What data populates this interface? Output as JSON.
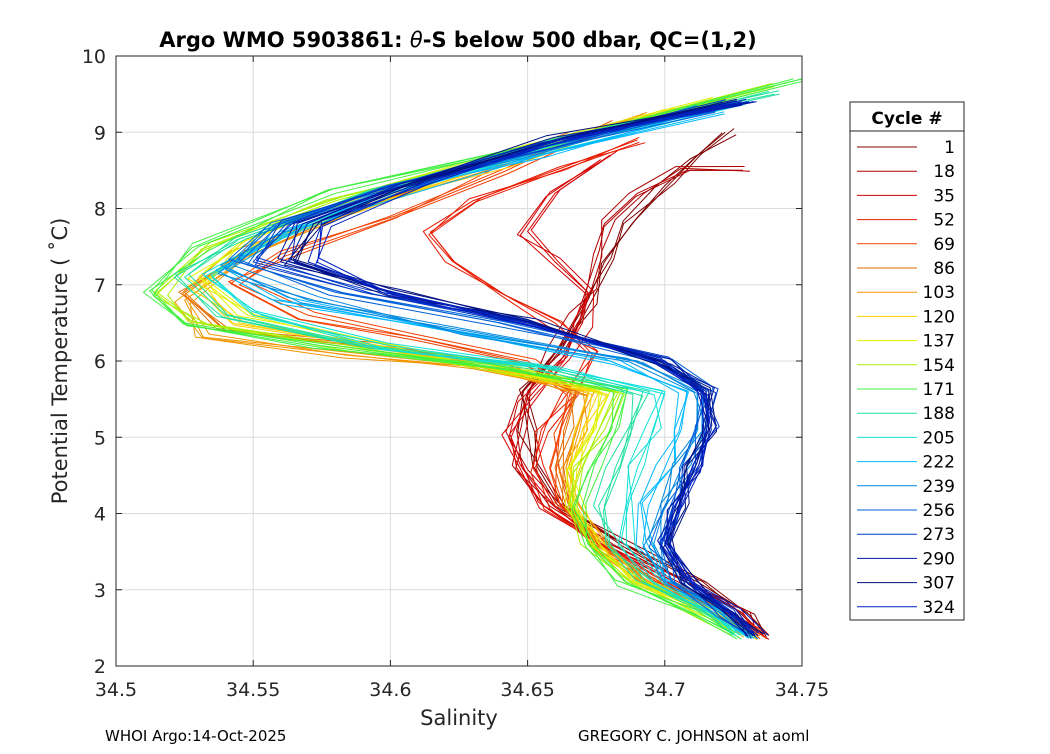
{
  "chart_data": {
    "type": "line",
    "title_prefix": "Argo WMO 5903861: ",
    "title_theta": "θ",
    "title_suffix": "-S below 500 dbar,  QC=(1,2)",
    "xlabel": "Salinity",
    "ylabel": "Potential Temperature ( ˚C)",
    "xlim": [
      34.5,
      34.75
    ],
    "ylim": [
      2,
      10
    ],
    "xticks": [
      34.5,
      34.55,
      34.6,
      34.65,
      34.7,
      34.75
    ],
    "xtick_labels": [
      "34.5",
      "34.55",
      "34.6",
      "34.65",
      "34.7",
      "34.75"
    ],
    "yticks": [
      2,
      3,
      4,
      5,
      6,
      7,
      8,
      9,
      10
    ],
    "ytick_labels": [
      "2",
      "3",
      "4",
      "5",
      "6",
      "7",
      "8",
      "9",
      "10"
    ],
    "grid": true,
    "legend": {
      "title": "Cycle #",
      "placement": "outside-right",
      "entries": [
        {
          "label": "1",
          "color": "#800000"
        },
        {
          "label": "18",
          "color": "#b00000"
        },
        {
          "label": "35",
          "color": "#d40000"
        },
        {
          "label": "52",
          "color": "#e81a00"
        },
        {
          "label": "69",
          "color": "#f24000"
        },
        {
          "label": "86",
          "color": "#e66b00"
        },
        {
          "label": "103",
          "color": "#f29500"
        },
        {
          "label": "120",
          "color": "#ffd000"
        },
        {
          "label": "137",
          "color": "#e0f000"
        },
        {
          "label": "154",
          "color": "#a8f000"
        },
        {
          "label": "171",
          "color": "#40f040"
        },
        {
          "label": "188",
          "color": "#20e0a0"
        },
        {
          "label": "205",
          "color": "#10e0d8"
        },
        {
          "label": "222",
          "color": "#00b8ff"
        },
        {
          "label": "239",
          "color": "#0088e0"
        },
        {
          "label": "256",
          "color": "#0060d8"
        },
        {
          "label": "273",
          "color": "#0038c8"
        },
        {
          "label": "290",
          "color": "#0018a0"
        },
        {
          "label": "307",
          "color": "#001080"
        },
        {
          "label": "324",
          "color": "#0020c0"
        }
      ]
    },
    "series": [
      {
        "name": "1",
        "color": "#800000",
        "s": [
          34.738,
          34.73,
          34.712,
          34.685,
          34.66,
          34.652,
          34.65,
          34.648,
          34.662,
          34.672,
          34.678,
          34.688,
          34.7,
          34.712,
          34.722
        ],
        "t": [
          2.4,
          2.7,
          3.1,
          3.6,
          4.1,
          4.6,
          5.1,
          5.6,
          6.2,
          6.8,
          7.3,
          7.8,
          8.3,
          8.7,
          9.0
        ]
      },
      {
        "name": "18",
        "color": "#b00000",
        "s": [
          34.736,
          34.728,
          34.708,
          34.68,
          34.658,
          34.648,
          34.646,
          34.65,
          34.66,
          34.668,
          34.672,
          34.674,
          34.678,
          34.69,
          34.708,
          34.728
        ],
        "t": [
          2.4,
          2.7,
          3.1,
          3.6,
          4.1,
          4.6,
          5.1,
          5.6,
          6.1,
          6.6,
          7.0,
          7.4,
          7.8,
          8.2,
          8.5,
          8.5
        ]
      },
      {
        "name": "35",
        "color": "#d40000",
        "s": [
          34.734,
          34.725,
          34.705,
          34.678,
          34.656,
          34.646,
          34.644,
          34.65,
          34.662,
          34.67,
          34.672,
          34.66,
          34.65,
          34.66,
          34.68
        ],
        "t": [
          2.4,
          2.7,
          3.1,
          3.6,
          4.1,
          4.6,
          5.0,
          5.5,
          6.0,
          6.5,
          6.9,
          7.3,
          7.7,
          8.2,
          8.7
        ]
      },
      {
        "name": "52",
        "color": "#e81a00",
        "s": [
          34.734,
          34.724,
          34.7,
          34.676,
          34.66,
          34.652,
          34.655,
          34.665,
          34.672,
          34.66,
          34.64,
          34.62,
          34.612,
          34.63,
          34.66,
          34.69
        ],
        "t": [
          2.4,
          2.7,
          3.1,
          3.6,
          4.1,
          4.6,
          5.1,
          5.6,
          6.1,
          6.5,
          6.9,
          7.3,
          7.7,
          8.1,
          8.5,
          8.9
        ]
      },
      {
        "name": "69",
        "color": "#f24000",
        "s": [
          34.733,
          34.722,
          34.698,
          34.676,
          34.662,
          34.658,
          34.662,
          34.668,
          34.65,
          34.61,
          34.57,
          34.545,
          34.56,
          34.6,
          34.64,
          34.68
        ],
        "t": [
          2.4,
          2.7,
          3.1,
          3.6,
          4.1,
          4.6,
          5.1,
          5.6,
          6.0,
          6.3,
          6.6,
          7.0,
          7.4,
          7.9,
          8.5,
          9.1
        ]
      },
      {
        "name": "86",
        "color": "#e66b00",
        "s": [
          34.732,
          34.72,
          34.696,
          34.676,
          34.664,
          34.66,
          34.664,
          34.668,
          34.64,
          34.59,
          34.54,
          34.525,
          34.545,
          34.58,
          34.62,
          34.665
        ],
        "t": [
          2.4,
          2.7,
          3.1,
          3.6,
          4.1,
          4.6,
          5.1,
          5.6,
          6.0,
          6.2,
          6.4,
          6.9,
          7.4,
          7.9,
          8.4,
          9.0
        ]
      },
      {
        "name": "103",
        "color": "#f29500",
        "s": [
          34.732,
          34.718,
          34.694,
          34.676,
          34.666,
          34.664,
          34.668,
          34.672,
          34.63,
          34.58,
          34.532,
          34.525,
          34.55,
          34.59,
          34.64,
          34.69
        ],
        "t": [
          2.4,
          2.7,
          3.1,
          3.6,
          4.1,
          4.6,
          5.1,
          5.6,
          5.9,
          6.1,
          6.3,
          6.8,
          7.4,
          8.0,
          8.6,
          9.2
        ]
      },
      {
        "name": "120",
        "color": "#ffd000",
        "s": [
          34.731,
          34.716,
          34.692,
          34.675,
          34.667,
          34.666,
          34.67,
          34.676,
          34.64,
          34.59,
          34.545,
          34.53,
          34.55,
          34.59,
          34.64,
          34.7
        ],
        "t": [
          2.4,
          2.7,
          3.1,
          3.6,
          4.1,
          4.6,
          5.1,
          5.6,
          5.9,
          6.2,
          6.5,
          7.0,
          7.5,
          8.0,
          8.6,
          9.3
        ]
      },
      {
        "name": "137",
        "color": "#e0f000",
        "s": [
          34.73,
          34.714,
          34.69,
          34.674,
          34.667,
          34.668,
          34.674,
          34.68,
          34.645,
          34.595,
          34.548,
          34.53,
          34.548,
          34.59,
          34.65,
          34.72
        ],
        "t": [
          2.4,
          2.7,
          3.1,
          3.6,
          4.1,
          4.6,
          5.1,
          5.6,
          5.9,
          6.2,
          6.6,
          7.1,
          7.6,
          8.2,
          8.8,
          9.4
        ]
      },
      {
        "name": "154",
        "color": "#a8f000",
        "s": [
          34.728,
          34.712,
          34.688,
          34.672,
          34.668,
          34.67,
          34.676,
          34.682,
          34.64,
          34.58,
          34.53,
          34.515,
          34.535,
          34.58,
          34.65,
          34.74
        ],
        "t": [
          2.4,
          2.7,
          3.1,
          3.6,
          4.1,
          4.6,
          5.1,
          5.6,
          5.9,
          6.2,
          6.5,
          6.9,
          7.5,
          8.1,
          8.8,
          9.6
        ]
      },
      {
        "name": "171",
        "color": "#40f040",
        "s": [
          34.726,
          34.71,
          34.686,
          34.672,
          34.67,
          34.674,
          34.68,
          34.685,
          34.64,
          34.575,
          34.525,
          34.51,
          34.53,
          34.58,
          34.66,
          34.75
        ],
        "t": [
          2.4,
          2.7,
          3.1,
          3.6,
          4.1,
          4.6,
          5.1,
          5.6,
          5.9,
          6.2,
          6.5,
          6.9,
          7.5,
          8.2,
          8.9,
          9.7
        ]
      },
      {
        "name": "188",
        "color": "#20e0a0",
        "s": [
          34.728,
          34.714,
          34.692,
          34.68,
          34.678,
          34.682,
          34.688,
          34.692,
          34.65,
          34.59,
          34.54,
          34.525,
          34.545,
          34.59,
          34.66,
          34.74
        ],
        "t": [
          2.4,
          2.7,
          3.1,
          3.6,
          4.1,
          4.6,
          5.1,
          5.6,
          5.9,
          6.2,
          6.6,
          7.1,
          7.6,
          8.2,
          8.9,
          9.5
        ]
      },
      {
        "name": "205",
        "color": "#10e0d8",
        "s": [
          34.729,
          34.716,
          34.696,
          34.686,
          34.686,
          34.69,
          34.696,
          34.7,
          34.66,
          34.6,
          34.55,
          34.535,
          34.555,
          34.6,
          34.66,
          34.73
        ],
        "t": [
          2.4,
          2.7,
          3.1,
          3.6,
          4.1,
          4.6,
          5.1,
          5.6,
          5.9,
          6.2,
          6.6,
          7.1,
          7.6,
          8.2,
          8.8,
          9.4
        ]
      },
      {
        "name": "222",
        "color": "#00b8ff",
        "s": [
          34.73,
          34.718,
          34.7,
          34.692,
          34.694,
          34.7,
          34.706,
          34.708,
          34.68,
          34.62,
          34.56,
          34.54,
          34.56,
          34.6,
          34.655,
          34.72
        ],
        "t": [
          2.4,
          2.7,
          3.1,
          3.6,
          4.1,
          4.6,
          5.1,
          5.6,
          6.0,
          6.4,
          6.8,
          7.2,
          7.7,
          8.2,
          8.7,
          9.3
        ]
      },
      {
        "name": "239",
        "color": "#0088e0",
        "s": [
          34.731,
          34.72,
          34.703,
          34.696,
          34.7,
          34.706,
          34.712,
          34.712,
          34.69,
          34.63,
          34.57,
          34.54,
          34.555,
          34.595,
          34.65,
          34.715
        ],
        "t": [
          2.4,
          2.7,
          3.1,
          3.6,
          4.1,
          4.6,
          5.1,
          5.6,
          6.0,
          6.4,
          6.8,
          7.2,
          7.7,
          8.2,
          8.7,
          9.3
        ]
      },
      {
        "name": "256",
        "color": "#0060d8",
        "s": [
          34.732,
          34.722,
          34.706,
          34.698,
          34.702,
          34.708,
          34.714,
          34.714,
          34.7,
          34.64,
          34.58,
          34.545,
          34.56,
          34.6,
          34.655,
          34.72
        ],
        "t": [
          2.4,
          2.7,
          3.1,
          3.6,
          4.1,
          4.6,
          5.1,
          5.6,
          6.0,
          6.5,
          6.9,
          7.3,
          7.8,
          8.3,
          8.8,
          9.3
        ]
      },
      {
        "name": "273",
        "color": "#0038c8",
        "s": [
          34.732,
          34.722,
          34.708,
          34.7,
          34.704,
          34.71,
          34.716,
          34.716,
          34.7,
          34.65,
          34.59,
          34.55,
          34.562,
          34.6,
          34.655,
          34.725
        ],
        "t": [
          2.4,
          2.7,
          3.1,
          3.6,
          4.1,
          4.6,
          5.1,
          5.6,
          6.0,
          6.5,
          6.9,
          7.3,
          7.8,
          8.3,
          8.8,
          9.4
        ]
      },
      {
        "name": "290",
        "color": "#0018a0",
        "s": [
          34.733,
          34.723,
          34.708,
          34.7,
          34.704,
          34.71,
          34.716,
          34.715,
          34.7,
          34.65,
          34.6,
          34.56,
          34.568,
          34.605,
          34.66,
          34.73
        ],
        "t": [
          2.4,
          2.7,
          3.1,
          3.6,
          4.1,
          4.6,
          5.1,
          5.6,
          6.0,
          6.5,
          6.9,
          7.3,
          7.8,
          8.3,
          8.9,
          9.4
        ]
      },
      {
        "name": "307",
        "color": "#001080",
        "s": [
          34.733,
          34.724,
          34.709,
          34.701,
          34.705,
          34.711,
          34.716,
          34.714,
          34.698,
          34.65,
          34.6,
          34.565,
          34.572,
          34.608,
          34.66,
          34.725
        ],
        "t": [
          2.4,
          2.7,
          3.1,
          3.6,
          4.1,
          4.6,
          5.1,
          5.6,
          6.0,
          6.5,
          6.9,
          7.3,
          7.8,
          8.3,
          8.9,
          9.4
        ]
      },
      {
        "name": "324",
        "color": "#0020c0",
        "s": [
          34.734,
          34.724,
          34.71,
          34.702,
          34.706,
          34.712,
          34.717,
          34.714,
          34.696,
          34.65,
          34.6,
          34.57,
          34.575,
          34.61,
          34.662,
          34.728
        ],
        "t": [
          2.4,
          2.7,
          3.1,
          3.6,
          4.1,
          4.6,
          5.1,
          5.6,
          6.0,
          6.5,
          6.9,
          7.3,
          7.8,
          8.3,
          8.9,
          9.4
        ]
      }
    ]
  },
  "footer": {
    "left": "WHOI Argo:14-Oct-2025",
    "right": "GREGORY C. JOHNSON at aoml"
  }
}
